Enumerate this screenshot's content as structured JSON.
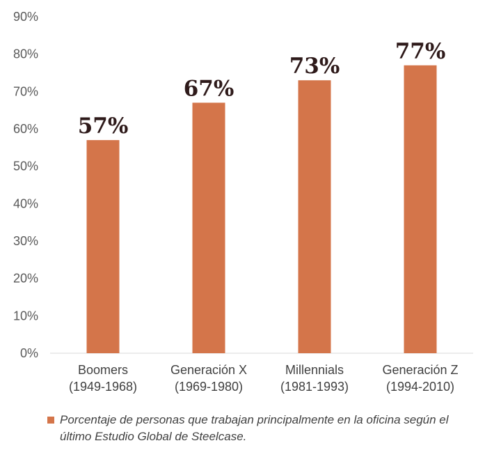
{
  "chart_data": {
    "type": "bar",
    "categories": [
      [
        "Boomers",
        "(1949-1968)"
      ],
      [
        "Generación X",
        "(1969-1980)"
      ],
      [
        "Millennials",
        "(1981-1993)"
      ],
      [
        "Generación Z",
        "(1994-2010)"
      ]
    ],
    "values": [
      57,
      67,
      73,
      77
    ],
    "data_labels": [
      "57%",
      "67%",
      "73%",
      "77%"
    ],
    "y_ticks": [
      "0%",
      "10%",
      "20%",
      "30%",
      "40%",
      "50%",
      "60%",
      "70%",
      "80%",
      "90%"
    ],
    "ylim": [
      0,
      90
    ],
    "grid": false,
    "bar_color": "#d4754a",
    "legend_position": "bottom",
    "series": [
      {
        "name": "Porcentaje de personas que trabajan principalmente en la oficina según el último Estudio Global de Steelcase.",
        "values": [
          57,
          67,
          73,
          77
        ]
      }
    ]
  }
}
